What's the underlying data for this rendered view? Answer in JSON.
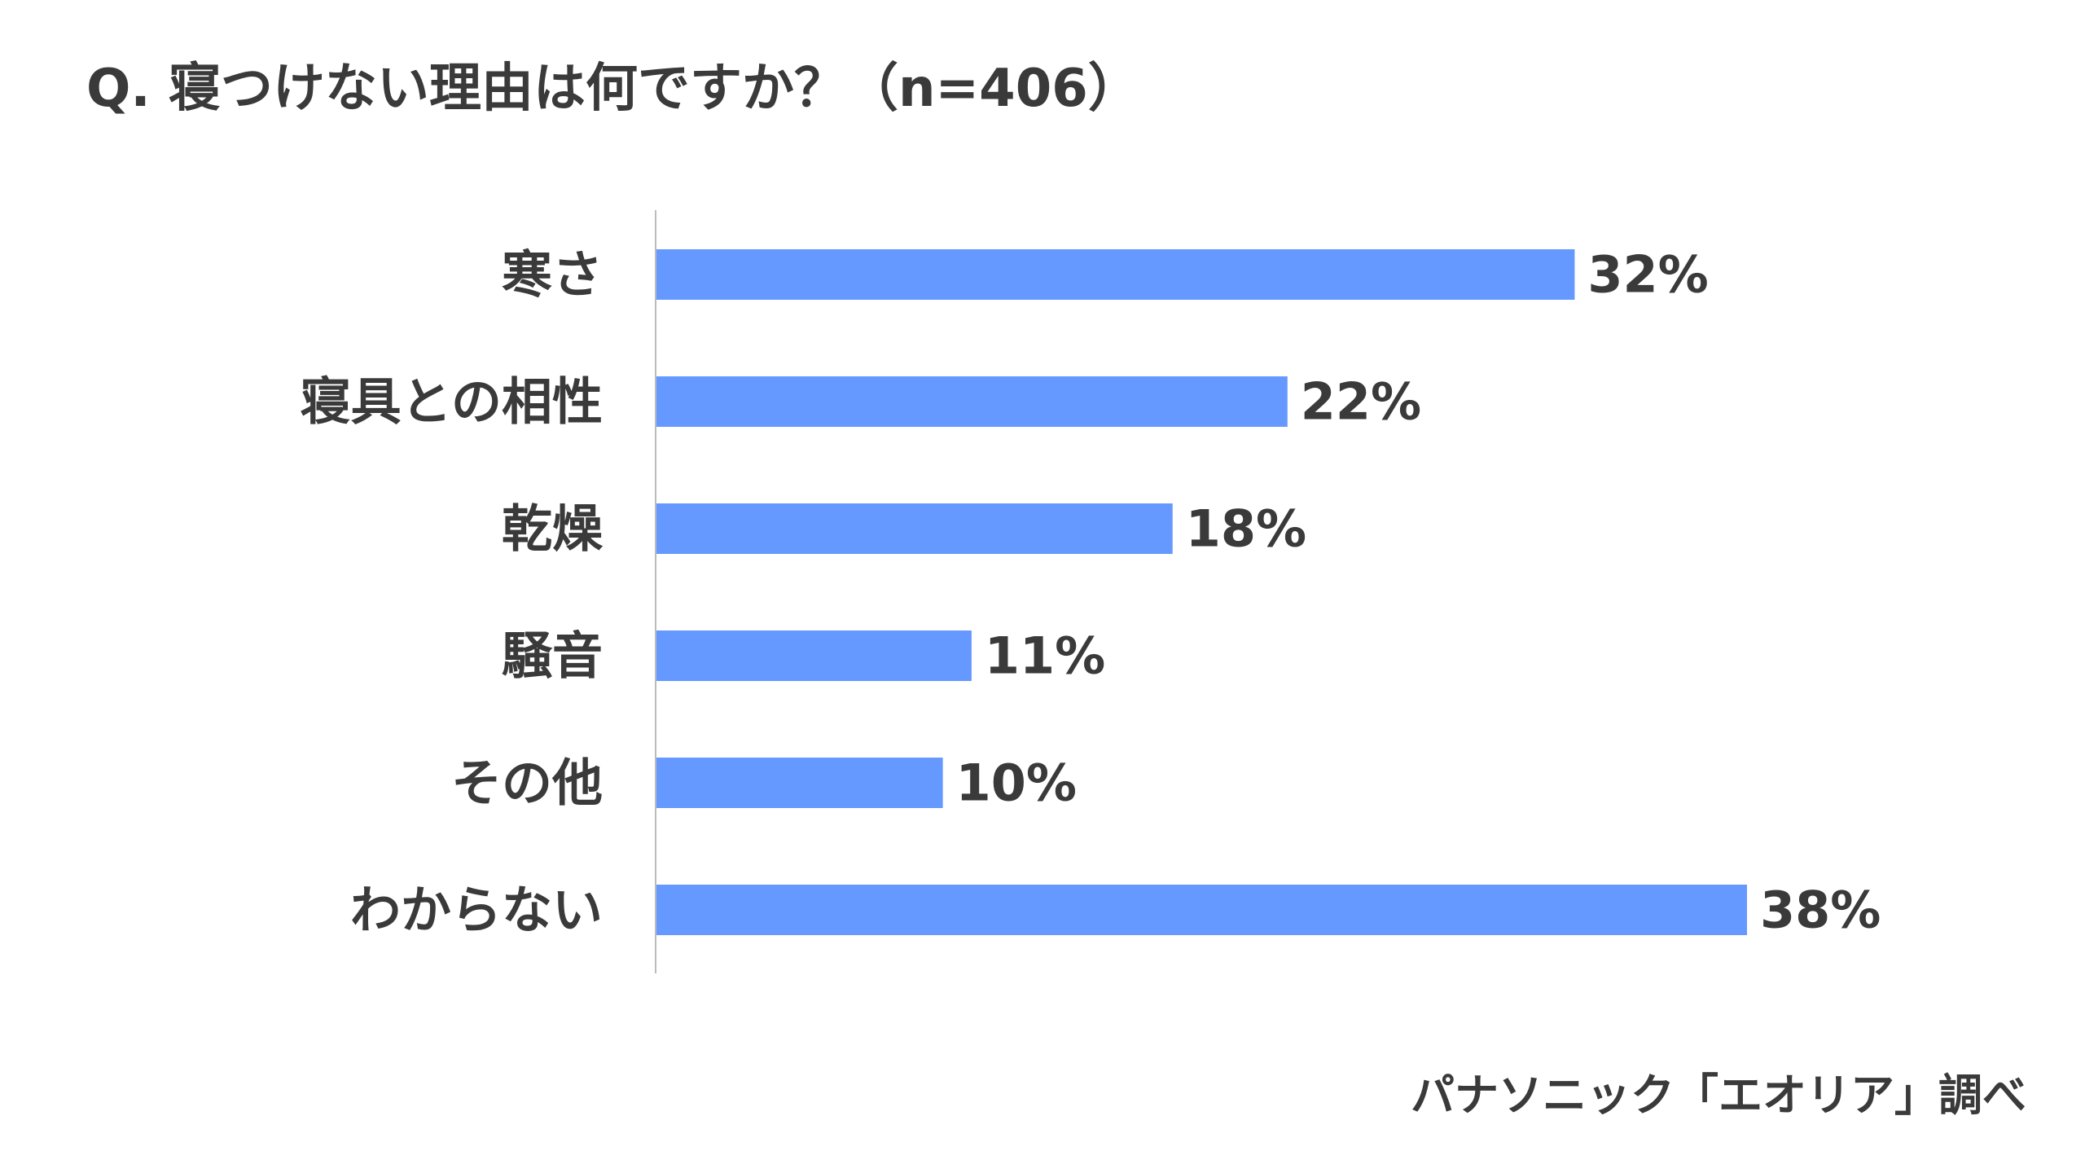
{
  "chart_data": {
    "type": "bar",
    "orientation": "horizontal",
    "title": "Q. 寝つけない理由は何ですか？（n=406）",
    "categories": [
      "寒さ",
      "寝具との相性",
      "乾燥",
      "騒音",
      "その他",
      "わからない"
    ],
    "values": [
      32,
      22,
      18,
      11,
      10,
      38
    ],
    "value_labels": [
      "32%",
      "22%",
      "18%",
      "11%",
      "10%",
      "38%"
    ],
    "unit": "%",
    "xlim": [
      0,
      38
    ],
    "grid": false,
    "legend": "none",
    "bar_color": "#6699ff",
    "axis_color": "#bbbbbb"
  },
  "source": "パナソニック「エオリア」調べ"
}
